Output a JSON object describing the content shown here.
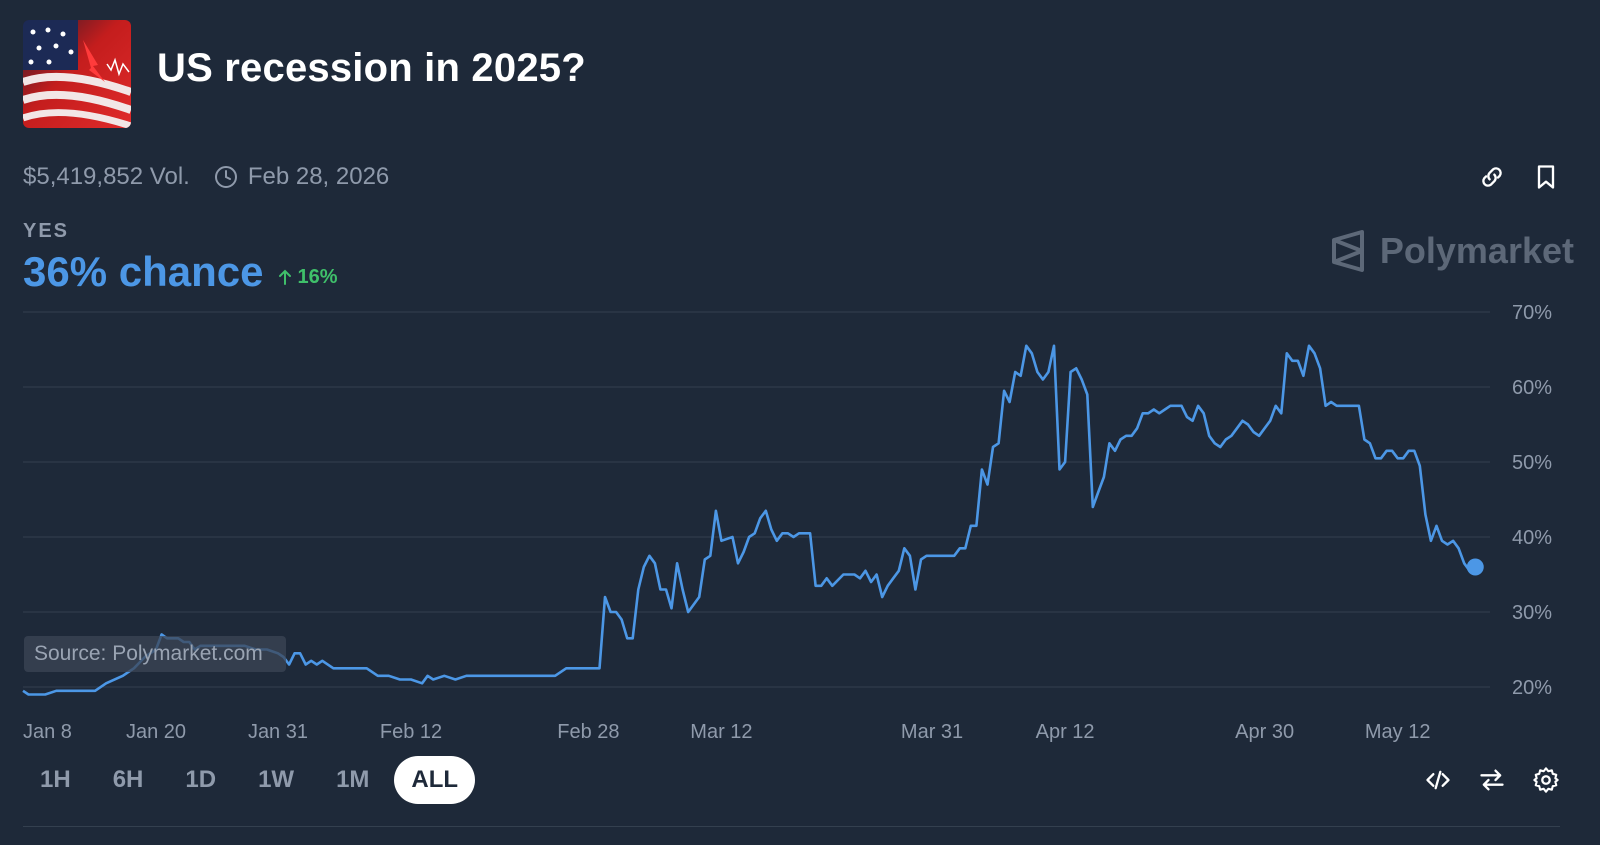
{
  "header": {
    "title": "US recession in 2025?",
    "volume": "$5,419,852 Vol.",
    "end_date": "Feb 28, 2026",
    "icons": [
      "link-icon",
      "bookmark-icon"
    ]
  },
  "outcome": {
    "label": "YES",
    "chance_text": "36% chance",
    "delta_text": "16%",
    "delta_color": "#3fbf6a",
    "accent": "#4c97e6"
  },
  "brand": {
    "name": "Polymarket"
  },
  "source": "Source: Polymarket.com",
  "range_buttons": [
    {
      "label": "1H",
      "active": false
    },
    {
      "label": "6H",
      "active": false
    },
    {
      "label": "1D",
      "active": false
    },
    {
      "label": "1W",
      "active": false
    },
    {
      "label": "1M",
      "active": false
    },
    {
      "label": "ALL",
      "active": true
    }
  ],
  "bottom_icons": [
    "embed-code-icon",
    "swap-icon",
    "settings-gear-icon"
  ],
  "chart_data": {
    "type": "line",
    "title": "",
    "xlabel": "",
    "ylabel": "",
    "ylim": [
      20,
      70
    ],
    "y_ticks": [
      20,
      30,
      40,
      50,
      60,
      70
    ],
    "y_tick_labels": [
      "20%",
      "30%",
      "40%",
      "50%",
      "60%",
      "70%"
    ],
    "y_axis_side": "right",
    "grid": "horizontal",
    "x_range": [
      0,
      128
    ],
    "x_ticks": [
      {
        "x": 0,
        "label": "Jan 8"
      },
      {
        "x": 12,
        "label": "Jan 20"
      },
      {
        "x": 23,
        "label": "Jan 31"
      },
      {
        "x": 35,
        "label": "Feb 12"
      },
      {
        "x": 51,
        "label": "Feb 28"
      },
      {
        "x": 63,
        "label": "Mar 12"
      },
      {
        "x": 82,
        "label": "Mar 31"
      },
      {
        "x": 94,
        "label": "Apr 12"
      },
      {
        "x": 112,
        "label": "Apr 30"
      },
      {
        "x": 124,
        "label": "May 12"
      }
    ],
    "series": [
      {
        "color": "#4c97e6",
        "points": [
          [
            0,
            19.5
          ],
          [
            0.5,
            19
          ],
          [
            1,
            19
          ],
          [
            2,
            19
          ],
          [
            3,
            19.5
          ],
          [
            5,
            19.5
          ],
          [
            6.5,
            19.5
          ],
          [
            7.5,
            20.5
          ],
          [
            9,
            21.5
          ],
          [
            10,
            22.5
          ],
          [
            11,
            24
          ],
          [
            12,
            25
          ],
          [
            12.5,
            27
          ],
          [
            13,
            26.5
          ],
          [
            14,
            26.5
          ],
          [
            14.5,
            26
          ],
          [
            15,
            26
          ],
          [
            15.5,
            25
          ],
          [
            16,
            25.5
          ],
          [
            18,
            25.5
          ],
          [
            19,
            25.5
          ],
          [
            20,
            25.5
          ],
          [
            21,
            25
          ],
          [
            22,
            25
          ],
          [
            23,
            24.5
          ],
          [
            23.5,
            24
          ],
          [
            24,
            23
          ],
          [
            24.5,
            24.5
          ],
          [
            25,
            24.5
          ],
          [
            25.5,
            23
          ],
          [
            26,
            23.5
          ],
          [
            26.5,
            23
          ],
          [
            27,
            23.5
          ],
          [
            28,
            22.5
          ],
          [
            29,
            22.5
          ],
          [
            30,
            22.5
          ],
          [
            31,
            22.5
          ],
          [
            32,
            21.5
          ],
          [
            33,
            21.5
          ],
          [
            34,
            21
          ],
          [
            35,
            21
          ],
          [
            36,
            20.5
          ],
          [
            36.5,
            21.5
          ],
          [
            37,
            21
          ],
          [
            38,
            21.5
          ],
          [
            39,
            21
          ],
          [
            40,
            21.5
          ],
          [
            42,
            21.5
          ],
          [
            45,
            21.5
          ],
          [
            48,
            21.5
          ],
          [
            49,
            22.5
          ],
          [
            51,
            22.5
          ],
          [
            52,
            22.5
          ],
          [
            52.5,
            32
          ],
          [
            53,
            30
          ],
          [
            53.5,
            30
          ],
          [
            54,
            29
          ],
          [
            54.5,
            26.5
          ],
          [
            55,
            26.5
          ],
          [
            55.5,
            33
          ],
          [
            56,
            36
          ],
          [
            56.5,
            37.5
          ],
          [
            57,
            36.5
          ],
          [
            57.5,
            33
          ],
          [
            58,
            33
          ],
          [
            58.5,
            30.5
          ],
          [
            59,
            36.5
          ],
          [
            59.5,
            33
          ],
          [
            60,
            30
          ],
          [
            60.5,
            31
          ],
          [
            61,
            32
          ],
          [
            61.5,
            37
          ],
          [
            62,
            37.5
          ],
          [
            62.5,
            43.5
          ],
          [
            63,
            39.5
          ],
          [
            64,
            40
          ],
          [
            64.5,
            36.5
          ],
          [
            65,
            38
          ],
          [
            65.5,
            40
          ],
          [
            66,
            40.5
          ],
          [
            66.5,
            42.5
          ],
          [
            67,
            43.5
          ],
          [
            67.5,
            41
          ],
          [
            68,
            39.5
          ],
          [
            68.5,
            40.5
          ],
          [
            69,
            40.5
          ],
          [
            69.5,
            40
          ],
          [
            70,
            40.5
          ],
          [
            71,
            40.5
          ],
          [
            71.5,
            33.5
          ],
          [
            72,
            33.5
          ],
          [
            72.5,
            34.5
          ],
          [
            73,
            33.5
          ],
          [
            74,
            35
          ],
          [
            75,
            35
          ],
          [
            75.5,
            34.5
          ],
          [
            76,
            35.5
          ],
          [
            76.5,
            34
          ],
          [
            77,
            35
          ],
          [
            77.5,
            32
          ],
          [
            78,
            33.5
          ],
          [
            78.5,
            34.5
          ],
          [
            79,
            35.5
          ],
          [
            79.5,
            38.5
          ],
          [
            80,
            37.5
          ],
          [
            80.5,
            33
          ],
          [
            81,
            37
          ],
          [
            81.5,
            37.5
          ],
          [
            82,
            37.5
          ],
          [
            83,
            37.5
          ],
          [
            84,
            37.5
          ],
          [
            84.5,
            38.5
          ],
          [
            85,
            38.5
          ],
          [
            85.5,
            41.5
          ],
          [
            86,
            41.5
          ],
          [
            86.5,
            49
          ],
          [
            87,
            47
          ],
          [
            87.5,
            52
          ],
          [
            88,
            52.5
          ],
          [
            88.5,
            59.5
          ],
          [
            89,
            58
          ],
          [
            89.5,
            62
          ],
          [
            90,
            61.5
          ],
          [
            90.5,
            65.5
          ],
          [
            91,
            64.5
          ],
          [
            91.5,
            62
          ],
          [
            92,
            61
          ],
          [
            92.5,
            62
          ],
          [
            93,
            65.5
          ],
          [
            93.5,
            49
          ],
          [
            94,
            50
          ],
          [
            94.5,
            62
          ],
          [
            95,
            62.5
          ],
          [
            95.5,
            61
          ],
          [
            96,
            59
          ],
          [
            96.5,
            44
          ],
          [
            97,
            46
          ],
          [
            97.5,
            48
          ],
          [
            98,
            52.5
          ],
          [
            98.5,
            51.5
          ],
          [
            99,
            53
          ],
          [
            99.5,
            53.5
          ],
          [
            100,
            53.5
          ],
          [
            100.5,
            54.5
          ],
          [
            101,
            56.5
          ],
          [
            101.5,
            56.5
          ],
          [
            102,
            57
          ],
          [
            102.5,
            56.5
          ],
          [
            103,
            57
          ],
          [
            103.5,
            57.5
          ],
          [
            104,
            57.5
          ],
          [
            104.5,
            57.5
          ],
          [
            105,
            56
          ],
          [
            105.5,
            55.5
          ],
          [
            106,
            57.5
          ],
          [
            106.5,
            56.5
          ],
          [
            107,
            53.5
          ],
          [
            107.5,
            52.5
          ],
          [
            108,
            52
          ],
          [
            108.5,
            53
          ],
          [
            109,
            53.5
          ],
          [
            110,
            55.5
          ],
          [
            110.5,
            55
          ],
          [
            111,
            54
          ],
          [
            111.5,
            53.5
          ],
          [
            112,
            54.5
          ],
          [
            112.5,
            55.5
          ],
          [
            113,
            57.5
          ],
          [
            113.5,
            56.5
          ],
          [
            114,
            64.5
          ],
          [
            114.5,
            63.5
          ],
          [
            115,
            63.5
          ],
          [
            115.5,
            61.5
          ],
          [
            116,
            65.5
          ],
          [
            116.5,
            64.5
          ],
          [
            117,
            62.5
          ],
          [
            117.5,
            57.5
          ],
          [
            118,
            58
          ],
          [
            118.5,
            57.5
          ],
          [
            119,
            57.5
          ],
          [
            120,
            57.5
          ],
          [
            120.5,
            57.5
          ],
          [
            121,
            53
          ],
          [
            121.5,
            52.5
          ],
          [
            122,
            50.5
          ],
          [
            122.5,
            50.5
          ],
          [
            123,
            51.5
          ],
          [
            123.5,
            51.5
          ],
          [
            124,
            50.5
          ],
          [
            124.5,
            50.5
          ],
          [
            125,
            51.5
          ],
          [
            125.5,
            51.5
          ],
          [
            126,
            49.5
          ],
          [
            126.5,
            43
          ],
          [
            127,
            39.5
          ],
          [
            127.5,
            41.5
          ],
          [
            128,
            39.5
          ],
          [
            128.5,
            39
          ],
          [
            129,
            39.5
          ],
          [
            129.5,
            38.5
          ],
          [
            130,
            36.5
          ],
          [
            130.5,
            35.5
          ],
          [
            131,
            36
          ]
        ],
        "last_value": 36
      }
    ]
  }
}
